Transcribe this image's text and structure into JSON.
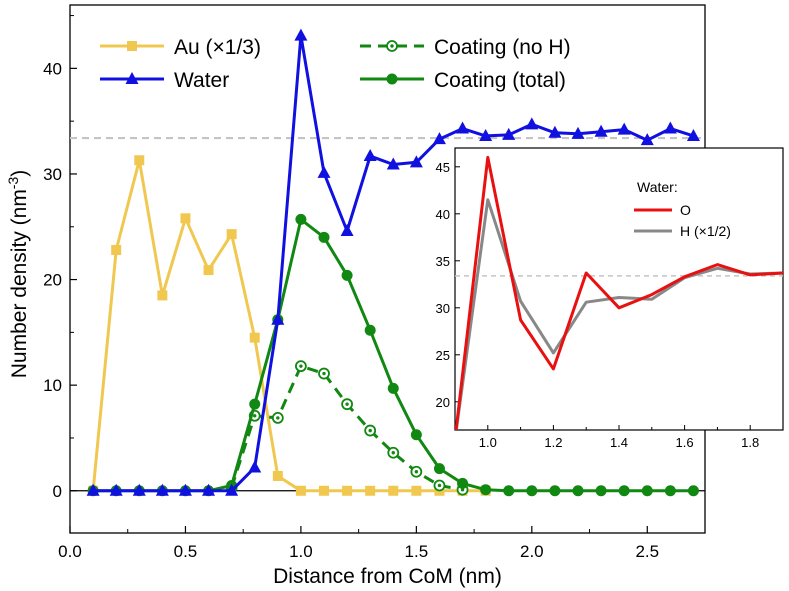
{
  "chart_data": [
    {
      "type": "line",
      "xlabel": "Distance from CoM (nm)",
      "ylabel": "Number density",
      "ylabel_unit": "(nm",
      "ylabel_exp": "-3",
      "ylabel_close": ")",
      "xlim": [
        0.0,
        2.75
      ],
      "ylim": [
        -4,
        46
      ],
      "xticks": [
        "0.0",
        "0.5",
        "1.0",
        "1.5",
        "2.0",
        "2.5"
      ],
      "xtick_values": [
        0.0,
        0.5,
        1.0,
        1.5,
        2.0,
        2.5
      ],
      "yticks": [
        "0",
        "10",
        "20",
        "30",
        "40"
      ],
      "ytick_values": [
        0,
        10,
        20,
        30,
        40
      ],
      "reference_line": 33.4,
      "legend_position": "top",
      "series": [
        {
          "name": "Au (×1/3)",
          "color": "#f0c850",
          "marker": "square",
          "style": "solid",
          "x": [
            0.1,
            0.2,
            0.3,
            0.4,
            0.5,
            0.6,
            0.7,
            0.8,
            0.9,
            1.0,
            1.1,
            1.2,
            1.3,
            1.4,
            1.5,
            1.6,
            1.7,
            1.8
          ],
          "y": [
            0,
            22.8,
            31.3,
            18.5,
            25.8,
            20.9,
            24.3,
            14.5,
            1.4,
            0,
            0,
            0,
            0,
            0,
            0,
            0,
            0,
            0
          ]
        },
        {
          "name": "Water",
          "color": "#1010e0",
          "marker": "triangle",
          "style": "solid",
          "x": [
            0.1,
            0.2,
            0.3,
            0.4,
            0.5,
            0.6,
            0.7,
            0.8,
            0.9,
            1.0,
            1.1,
            1.2,
            1.3,
            1.4,
            1.5,
            1.6,
            1.7,
            1.8,
            1.9,
            2.0,
            2.1,
            2.2,
            2.3,
            2.4,
            2.5,
            2.6,
            2.7
          ],
          "y": [
            0,
            0,
            0,
            0,
            0,
            0,
            0,
            2.2,
            16.2,
            43.1,
            30.1,
            24.6,
            31.7,
            30.9,
            31.1,
            33.3,
            34.3,
            33.6,
            33.7,
            34.7,
            33.9,
            33.8,
            34.0,
            34.2,
            33.2,
            34.3,
            33.6
          ]
        },
        {
          "name": "Coating (no H)",
          "color": "#118811",
          "marker": "circle-dot",
          "style": "dashed",
          "x": [
            0.7,
            0.8,
            0.9,
            1.0,
            1.1,
            1.2,
            1.3,
            1.4,
            1.5,
            1.6,
            1.7
          ],
          "y": [
            0.3,
            7.1,
            6.9,
            11.8,
            11.1,
            8.2,
            5.7,
            3.6,
            1.8,
            0.5,
            0.1
          ]
        },
        {
          "name": "Coating (total)",
          "color": "#118811",
          "marker": "circle",
          "style": "solid",
          "x": [
            0.1,
            0.2,
            0.3,
            0.4,
            0.5,
            0.6,
            0.7,
            0.8,
            0.9,
            1.0,
            1.1,
            1.2,
            1.3,
            1.4,
            1.5,
            1.6,
            1.7,
            1.8,
            1.9,
            2.0,
            2.1,
            2.2,
            2.3,
            2.4,
            2.5,
            2.6,
            2.7
          ],
          "y": [
            0,
            0,
            0,
            0,
            0,
            0,
            0.5,
            8.2,
            16.2,
            25.7,
            24.0,
            20.4,
            15.2,
            9.7,
            5.3,
            2.1,
            0.7,
            0.1,
            0,
            0,
            0,
            0,
            0,
            0,
            0,
            0,
            0
          ]
        }
      ]
    },
    {
      "type": "line",
      "title": "inset",
      "xlim": [
        0.9,
        1.9
      ],
      "ylim": [
        17,
        47
      ],
      "xticks": [
        "1.0",
        "1.2",
        "1.4",
        "1.6",
        "1.8"
      ],
      "xtick_values": [
        1.0,
        1.2,
        1.4,
        1.6,
        1.8
      ],
      "yticks": [
        "20",
        "25",
        "30",
        "35",
        "40",
        "45"
      ],
      "ytick_values": [
        20,
        25,
        30,
        35,
        40,
        45
      ],
      "reference_line": 33.4,
      "legend_title": "Water:",
      "series": [
        {
          "name": "O",
          "color": "#e81010",
          "x": [
            0.9,
            1.0,
            1.1,
            1.2,
            1.3,
            1.4,
            1.5,
            1.6,
            1.7,
            1.8,
            1.9
          ],
          "y": [
            16.0,
            46.0,
            28.7,
            23.5,
            33.7,
            30.0,
            31.4,
            33.3,
            34.6,
            33.5,
            33.7
          ]
        },
        {
          "name": "H (×1/2)",
          "color": "#888888",
          "x": [
            0.9,
            1.0,
            1.1,
            1.2,
            1.3,
            1.4,
            1.5,
            1.6,
            1.7,
            1.8,
            1.9
          ],
          "y": [
            16.0,
            41.5,
            30.7,
            25.2,
            30.6,
            31.1,
            30.9,
            33.2,
            34.2,
            33.6,
            33.7
          ]
        }
      ]
    }
  ]
}
